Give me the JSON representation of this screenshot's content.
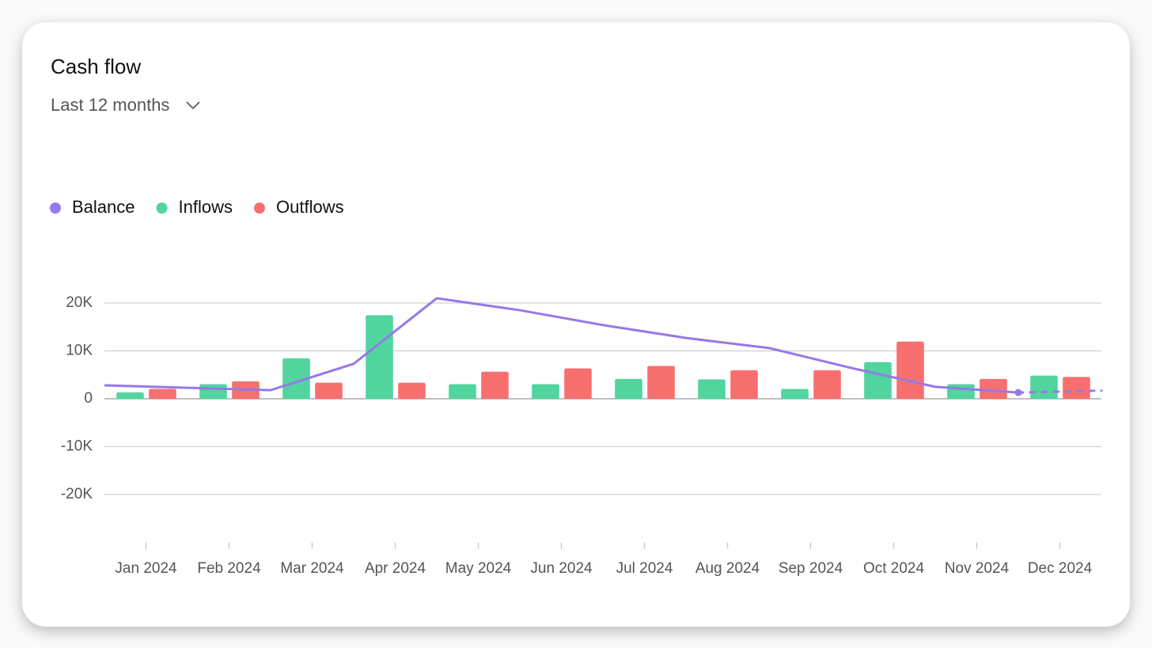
{
  "header": {
    "title": "Cash flow",
    "period": "Last 12 months"
  },
  "chart_data": {
    "type": "bar",
    "categories": [
      "Jan 2024",
      "Feb 2024",
      "Mar 2024",
      "Apr 2024",
      "May 2024",
      "Jun 2024",
      "Jul 2024",
      "Aug 2024",
      "Sep 2024",
      "Oct 2024",
      "Nov 2024",
      "Dec 2024"
    ],
    "series": [
      {
        "name": "Balance",
        "color": "#9579e8",
        "type": "line",
        "start_value": 2800,
        "values": [
          2300,
          1800,
          7300,
          21000,
          18500,
          15400,
          12700,
          10600,
          6400,
          2500,
          1300,
          1700
        ],
        "dashed_last": true
      },
      {
        "name": "Inflows",
        "color": "#52d49e",
        "type": "bar",
        "values": [
          1300,
          3000,
          8400,
          17400,
          3000,
          3000,
          4100,
          4000,
          2000,
          7600,
          3000,
          4800
        ]
      },
      {
        "name": "Outflows",
        "color": "#f76f6f",
        "type": "bar",
        "values": [
          2000,
          3600,
          3300,
          3300,
          5600,
          6300,
          6800,
          5900,
          5900,
          11900,
          4100,
          4500
        ]
      }
    ],
    "ylim": [
      -30000,
      30000
    ],
    "yticks": [
      {
        "value": -20000,
        "label": "-20K"
      },
      {
        "value": -10000,
        "label": "-10K"
      },
      0,
      {
        "value": 10000,
        "label": "10K"
      },
      {
        "value": 20000,
        "label": "20K"
      }
    ],
    "grid": true
  }
}
